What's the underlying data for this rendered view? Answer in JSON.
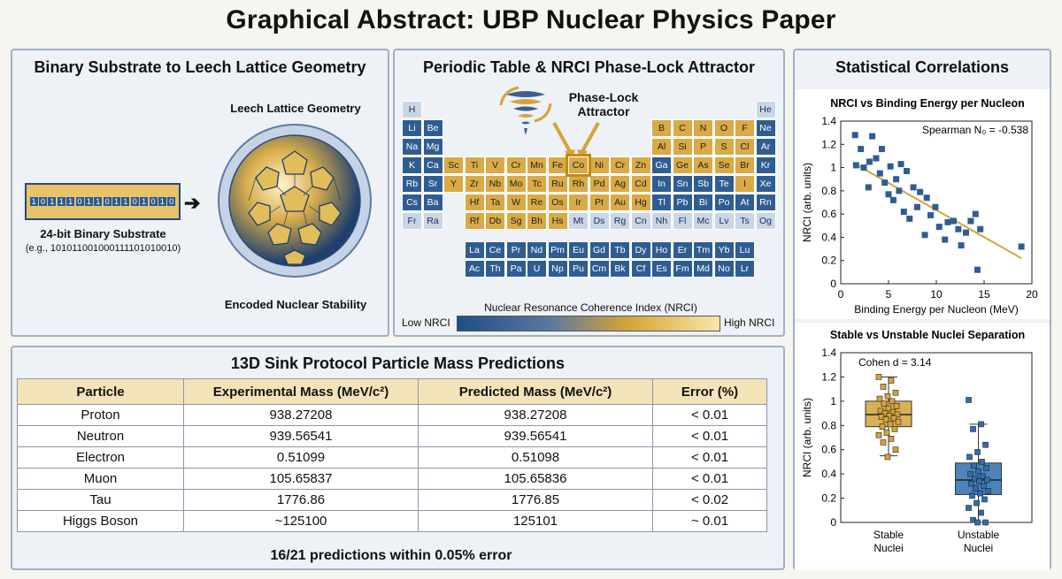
{
  "title": "Graphical Abstract: UBP Nuclear Physics Paper",
  "panels": {
    "binary": {
      "title": "Binary Substrate to Leech Lattice Geometry",
      "bits": [
        "1",
        "0",
        "1",
        "1",
        "1",
        "0",
        "1",
        "1",
        "0",
        "1",
        "1",
        "0",
        "1",
        "0",
        "1",
        "0"
      ],
      "substrate_label": "24-bit Binary Substrate",
      "substrate_example": "(e.g., 101011001000111101010010)",
      "lattice_label": "Leech Lattice Geometry",
      "stability_label": "Encoded Nuclear Stability"
    },
    "periodic": {
      "title": "Periodic Table & NRCI Phase-Lock Attractor",
      "attractor_line1": "Phase-Lock",
      "attractor_line2": "Attractor",
      "colorbar_title": "Nuclear Resonance Coherence Index (NRCI)",
      "low_label": "Low NRCI",
      "high_label": "High NRCI",
      "colors": {
        "low": "#1f4e85",
        "high": "#f7e7a8",
        "gold": "#d9aa45",
        "blue": "#2f5d92"
      }
    },
    "stats": {
      "title": "Statistical Correlations"
    },
    "table": {
      "title": "13D Sink Protocol Particle Mass Predictions",
      "headers": [
        "Particle",
        "Experimental Mass (MeV/c²)",
        "Predicted Mass (MeV/c²)",
        "Error (%)"
      ],
      "rows": [
        [
          "Proton",
          "938.27208",
          "938.27208",
          "< 0.01"
        ],
        [
          "Neutron",
          "939.56541",
          "939.56541",
          "< 0.01"
        ],
        [
          "Electron",
          "0.51099",
          "0.51098",
          "< 0.01"
        ],
        [
          "Muon",
          "105.65837",
          "105.65836",
          "< 0.01"
        ],
        [
          "Tau",
          "1776.86",
          "1776.85",
          "< 0.02"
        ],
        [
          "Higgs Boson",
          "~125100",
          "125101",
          "~ 0.01"
        ]
      ],
      "footer": "16/21 predictions within 0.05% error"
    }
  },
  "elements": [
    {
      "s": "H",
      "c": "light"
    },
    {
      "s": "He",
      "c": "light"
    },
    {
      "s": "Li",
      "c": "blue"
    },
    {
      "s": "Be",
      "c": "blue"
    },
    {
      "s": "B",
      "c": "gold"
    },
    {
      "s": "C",
      "c": "gold"
    },
    {
      "s": "N",
      "c": "gold"
    },
    {
      "s": "O",
      "c": "gold"
    },
    {
      "s": "F",
      "c": "gold"
    },
    {
      "s": "Ne",
      "c": "blue"
    },
    {
      "s": "Na",
      "c": "blue"
    },
    {
      "s": "Mg",
      "c": "blue"
    },
    {
      "s": "Al",
      "c": "gold"
    },
    {
      "s": "Si",
      "c": "gold"
    },
    {
      "s": "P",
      "c": "gold"
    },
    {
      "s": "S",
      "c": "gold"
    },
    {
      "s": "Cl",
      "c": "gold"
    },
    {
      "s": "Ar",
      "c": "blue"
    },
    {
      "s": "K",
      "c": "blue"
    },
    {
      "s": "Ca",
      "c": "blue"
    },
    {
      "s": "Sc",
      "c": "gold"
    },
    {
      "s": "Ti",
      "c": "gold"
    },
    {
      "s": "V",
      "c": "gold"
    },
    {
      "s": "Cr",
      "c": "gold"
    },
    {
      "s": "Mn",
      "c": "gold"
    },
    {
      "s": "Fe",
      "c": "gold"
    },
    {
      "s": "Co",
      "c": "gold",
      "hl": true
    },
    {
      "s": "Ni",
      "c": "gold"
    },
    {
      "s": "Cr",
      "c": "gold"
    },
    {
      "s": "Zn",
      "c": "gold"
    },
    {
      "s": "Ga",
      "c": "blue"
    },
    {
      "s": "Ge",
      "c": "gold"
    },
    {
      "s": "As",
      "c": "gold"
    },
    {
      "s": "Se",
      "c": "gold"
    },
    {
      "s": "Br",
      "c": "gold"
    },
    {
      "s": "Kr",
      "c": "blue"
    },
    {
      "s": "Rb",
      "c": "blue"
    },
    {
      "s": "Sr",
      "c": "blue"
    },
    {
      "s": "Y",
      "c": "gold"
    },
    {
      "s": "Zr",
      "c": "gold"
    },
    {
      "s": "Nb",
      "c": "gold"
    },
    {
      "s": "Mo",
      "c": "gold"
    },
    {
      "s": "Tc",
      "c": "gold"
    },
    {
      "s": "Ru",
      "c": "gold"
    },
    {
      "s": "Rh",
      "c": "gold"
    },
    {
      "s": "Pd",
      "c": "gold"
    },
    {
      "s": "Ag",
      "c": "gold"
    },
    {
      "s": "Cd",
      "c": "gold"
    },
    {
      "s": "In",
      "c": "blue"
    },
    {
      "s": "Sn",
      "c": "blue"
    },
    {
      "s": "Sb",
      "c": "blue"
    },
    {
      "s": "Te",
      "c": "blue"
    },
    {
      "s": "I",
      "c": "gold"
    },
    {
      "s": "Xe",
      "c": "blue"
    },
    {
      "s": "Cs",
      "c": "blue"
    },
    {
      "s": "Ba",
      "c": "blue"
    },
    {
      "s": "Hf",
      "c": "gold"
    },
    {
      "s": "Ta",
      "c": "gold"
    },
    {
      "s": "W",
      "c": "gold"
    },
    {
      "s": "Re",
      "c": "gold"
    },
    {
      "s": "Os",
      "c": "gold"
    },
    {
      "s": "Ir",
      "c": "gold"
    },
    {
      "s": "Pt",
      "c": "gold"
    },
    {
      "s": "Au",
      "c": "gold"
    },
    {
      "s": "Hg",
      "c": "gold"
    },
    {
      "s": "Tl",
      "c": "blue"
    },
    {
      "s": "Pb",
      "c": "blue"
    },
    {
      "s": "Bi",
      "c": "blue"
    },
    {
      "s": "Po",
      "c": "blue"
    },
    {
      "s": "At",
      "c": "blue"
    },
    {
      "s": "Rn",
      "c": "blue"
    },
    {
      "s": "Fr",
      "c": "light"
    },
    {
      "s": "Ra",
      "c": "light"
    },
    {
      "s": "Rf",
      "c": "gold"
    },
    {
      "s": "Db",
      "c": "gold"
    },
    {
      "s": "Sg",
      "c": "gold"
    },
    {
      "s": "Bh",
      "c": "gold"
    },
    {
      "s": "Hs",
      "c": "gold"
    },
    {
      "s": "Mt",
      "c": "light"
    },
    {
      "s": "Ds",
      "c": "light"
    },
    {
      "s": "Rg",
      "c": "light"
    },
    {
      "s": "Cn",
      "c": "light"
    },
    {
      "s": "Nh",
      "c": "light"
    },
    {
      "s": "Fl",
      "c": "light"
    },
    {
      "s": "Mc",
      "c": "light"
    },
    {
      "s": "Lv",
      "c": "light"
    },
    {
      "s": "Ts",
      "c": "light"
    },
    {
      "s": "Og",
      "c": "light"
    },
    {
      "s": "La",
      "c": "blue"
    },
    {
      "s": "Ce",
      "c": "blue"
    },
    {
      "s": "Pr",
      "c": "blue"
    },
    {
      "s": "Nd",
      "c": "blue"
    },
    {
      "s": "Pm",
      "c": "blue"
    },
    {
      "s": "Eu",
      "c": "blue"
    },
    {
      "s": "Gd",
      "c": "blue"
    },
    {
      "s": "Tb",
      "c": "blue"
    },
    {
      "s": "Dy",
      "c": "blue"
    },
    {
      "s": "Ho",
      "c": "blue"
    },
    {
      "s": "Er",
      "c": "blue"
    },
    {
      "s": "Tm",
      "c": "blue"
    },
    {
      "s": "Yb",
      "c": "blue"
    },
    {
      "s": "Lu",
      "c": "blue"
    },
    {
      "s": "Ac",
      "c": "blue"
    },
    {
      "s": "Th",
      "c": "blue"
    },
    {
      "s": "Pa",
      "c": "blue"
    },
    {
      "s": "U",
      "c": "blue"
    },
    {
      "s": "Np",
      "c": "blue"
    },
    {
      "s": "Pu",
      "c": "blue"
    },
    {
      "s": "Cm",
      "c": "blue"
    },
    {
      "s": "Bk",
      "c": "blue"
    },
    {
      "s": "Cf",
      "c": "blue"
    },
    {
      "s": "Es",
      "c": "blue"
    },
    {
      "s": "Fm",
      "c": "blue"
    },
    {
      "s": "Md",
      "c": "blue"
    },
    {
      "s": "No",
      "c": "blue"
    },
    {
      "s": "Lr",
      "c": "blue"
    }
  ],
  "chart_data": [
    {
      "type": "scatter",
      "title": "NRCI vs Binding Energy per Nucleon",
      "xlabel": "Binding Energy per Nucleon (MeV)",
      "ylabel": "NRCI (arb. units)",
      "xlim": [
        0,
        20
      ],
      "ylim": [
        0,
        1.4
      ],
      "xticks": [
        0,
        5,
        10,
        15,
        20
      ],
      "yticks": [
        0,
        0.2,
        0.4,
        0.6,
        0.8,
        1,
        1.2,
        1.4
      ],
      "annotation": "Spearman N₀ = -0.538",
      "points": [
        [
          1.5,
          1.28
        ],
        [
          1.6,
          1.02
        ],
        [
          2.1,
          1.16
        ],
        [
          2.4,
          1.0
        ],
        [
          2.9,
          0.83
        ],
        [
          3.3,
          1.27
        ],
        [
          3.0,
          1.05
        ],
        [
          3.7,
          1.08
        ],
        [
          4.1,
          0.95
        ],
        [
          4.3,
          1.16
        ],
        [
          4.6,
          0.87
        ],
        [
          5.0,
          0.77
        ],
        [
          5.2,
          1.01
        ],
        [
          5.5,
          0.72
        ],
        [
          5.8,
          0.9
        ],
        [
          6.1,
          0.8
        ],
        [
          6.3,
          1.03
        ],
        [
          6.6,
          0.62
        ],
        [
          6.9,
          0.97
        ],
        [
          7.2,
          0.56
        ],
        [
          7.6,
          0.83
        ],
        [
          8.0,
          0.66
        ],
        [
          8.3,
          0.79
        ],
        [
          8.8,
          0.42
        ],
        [
          9.0,
          0.74
        ],
        [
          9.4,
          0.59
        ],
        [
          9.9,
          0.66
        ],
        [
          10.3,
          0.49
        ],
        [
          10.9,
          0.38
        ],
        [
          11.2,
          0.53
        ],
        [
          11.8,
          0.54
        ],
        [
          12.3,
          0.47
        ],
        [
          12.6,
          0.33
        ],
        [
          13.1,
          0.44
        ],
        [
          13.6,
          0.54
        ],
        [
          14.1,
          0.6
        ],
        [
          14.6,
          0.47
        ],
        [
          14.3,
          0.12
        ],
        [
          18.9,
          0.32
        ]
      ],
      "fit": [
        [
          1.5,
          1.03
        ],
        [
          18.9,
          0.22
        ]
      ],
      "colors": {
        "points": "#2f5d92",
        "fit": "#d4a437"
      }
    },
    {
      "type": "box",
      "title": "Stable vs Unstable Nuclei Separation",
      "ylabel": "NRCI (arb. units)",
      "ylim": [
        0,
        1.4
      ],
      "yticks": [
        0,
        0.2,
        0.4,
        0.6,
        0.8,
        1,
        1.2,
        1.4
      ],
      "annotation": "Cohen d = 3.14",
      "categories": [
        "Stable\nNuclei",
        "Unstable\nNuclei"
      ],
      "series": [
        {
          "q1": 0.79,
          "median": 0.89,
          "q3": 1.0,
          "whisker_low": 0.55,
          "whisker_high": 1.2,
          "points": [
            1.2,
            1.17,
            1.12,
            1.07,
            1.04,
            1.02,
            1.0,
            0.98,
            0.96,
            0.94,
            0.92,
            0.91,
            0.9,
            0.89,
            0.88,
            0.87,
            0.86,
            0.85,
            0.83,
            0.81,
            0.79,
            0.77,
            0.74,
            0.72,
            0.69,
            0.66,
            0.6,
            0.54
          ],
          "color": "#d4a437"
        },
        {
          "q1": 0.23,
          "median": 0.35,
          "q3": 0.49,
          "whisker_low": 0.0,
          "whisker_high": 0.81,
          "points": [
            1.01,
            0.81,
            0.77,
            0.64,
            0.58,
            0.54,
            0.5,
            0.47,
            0.45,
            0.42,
            0.4,
            0.38,
            0.36,
            0.35,
            0.34,
            0.32,
            0.3,
            0.28,
            0.26,
            0.24,
            0.22,
            0.19,
            0.16,
            0.12,
            0.08,
            0.02,
            0.0,
            0.0
          ],
          "color": "#2f6eb0"
        }
      ]
    }
  ]
}
